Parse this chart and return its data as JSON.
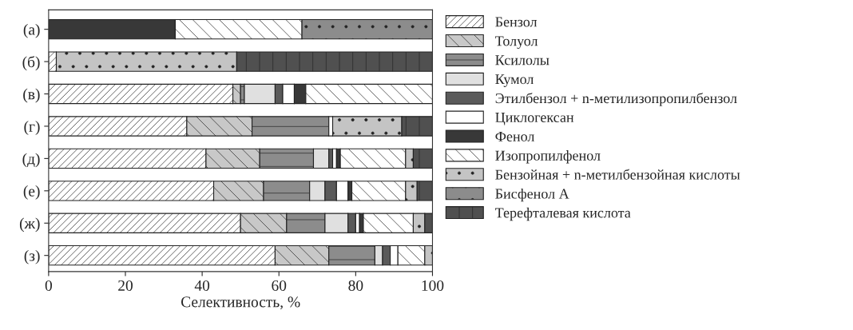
{
  "chart_data": {
    "type": "bar",
    "orientation": "horizontal",
    "stacked": true,
    "xlabel": "Селективность, %",
    "categories": [
      "(а)",
      "(б)",
      "(в)",
      "(г)",
      "(д)",
      "(е)",
      "(ж)",
      "(з)"
    ],
    "xlim": [
      0,
      100
    ],
    "xticks": [
      0,
      20,
      40,
      60,
      80,
      100
    ],
    "grid": false,
    "legend": "right",
    "series": [
      {
        "name": "Бензол",
        "color": "#ffffff",
        "values": [
          null,
          2,
          48,
          36,
          41,
          43,
          50,
          59
        ]
      },
      {
        "name": "Толуол",
        "color": "#c8c8c8",
        "values": [
          null,
          null,
          2,
          17,
          14,
          13,
          12,
          14
        ]
      },
      {
        "name": "Ксилолы",
        "color": "#8c8c8c",
        "values": [
          null,
          null,
          1,
          20,
          14,
          12,
          10,
          12
        ]
      },
      {
        "name": "Кумол",
        "color": "#e0e0e0",
        "values": [
          null,
          null,
          8,
          null,
          4,
          4,
          6,
          2
        ]
      },
      {
        "name": "Этилбензол + n-метилизопропилбензол",
        "color": "#5a5a5a",
        "values": [
          null,
          null,
          2,
          null,
          1,
          3,
          2,
          2
        ]
      },
      {
        "name": "Циклогексан",
        "color": "#ffffff",
        "values": [
          null,
          null,
          3,
          1,
          1,
          3,
          1,
          2
        ]
      },
      {
        "name": "Фенол",
        "color": "#383838",
        "values": [
          33,
          null,
          3,
          null,
          1,
          1,
          1,
          null
        ]
      },
      {
        "name": "Изопропилфенол",
        "color": "#ffffff",
        "values": [
          33,
          null,
          33,
          null,
          17,
          14,
          13,
          7
        ]
      },
      {
        "name": "Бензойная + n-метилбензойная кислоты",
        "color": "#c4c4c4",
        "values": [
          null,
          47,
          null,
          18,
          2,
          3,
          3,
          2
        ]
      },
      {
        "name": "Бисфенол А",
        "color": "#8c8c8c",
        "values": [
          34,
          null,
          null,
          null,
          null,
          null,
          null,
          null
        ]
      },
      {
        "name": "Терефталевая кислота",
        "color": "#505050",
        "values": [
          null,
          51,
          null,
          8,
          5,
          4,
          2,
          null
        ]
      }
    ]
  }
}
